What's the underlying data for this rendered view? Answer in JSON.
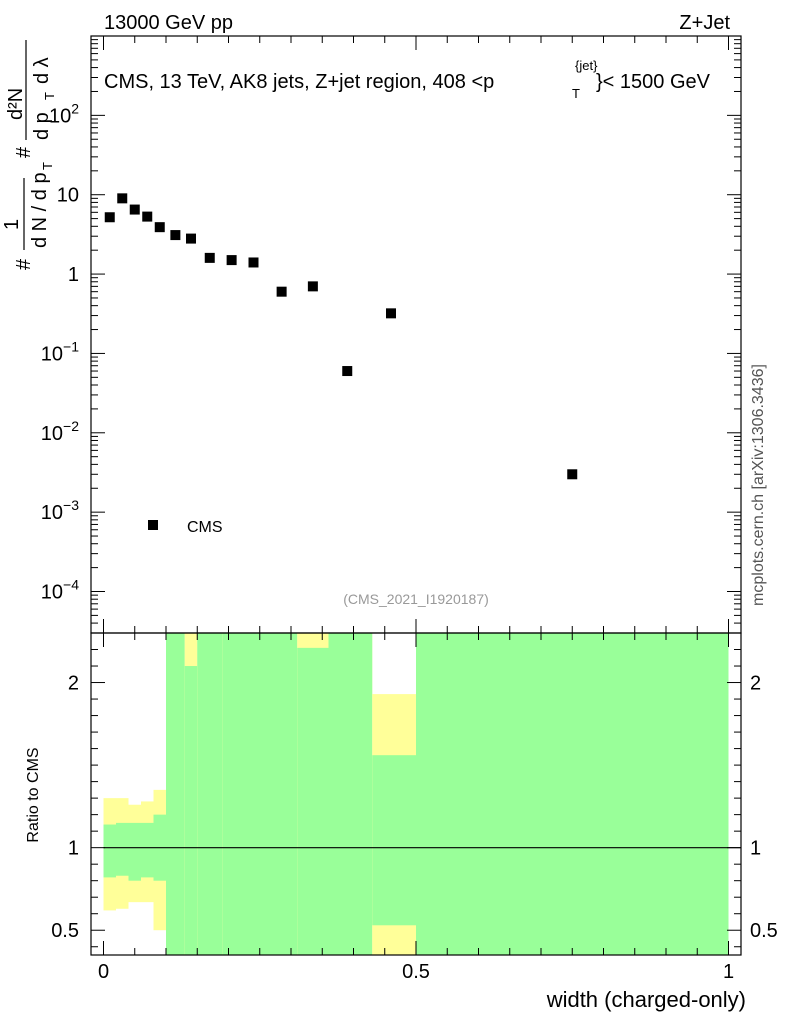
{
  "header": {
    "left": "13000 GeV pp",
    "right": "Z+Jet"
  },
  "plot_title": {
    "prefix": "CMS, 13 TeV, AK8 jets, Z+jet region, 408 <",
    "p": "p",
    "sub": "T",
    "sup": "{jet}",
    "suffix": "}< 1500 GeV"
  },
  "analysis_tag": "(CMS_2021_I1920187)",
  "side_label": "mcplots.cern.ch [arXiv:1306.3436]",
  "colors": {
    "marker": "#000000",
    "band_inner": "#99ff99",
    "band_outer": "#ffff99",
    "axis": "#000000",
    "tag": "#999999"
  },
  "chart_data": [
    {
      "type": "scatter",
      "panel": "main",
      "ylabel_parts": {
        "hash": "#",
        "one": "1",
        "dN": "d N / d p",
        "T": "T",
        "d2N": "d²N",
        "dp": "d p",
        "dl": "d λ"
      },
      "yscale": "log",
      "ylim": [
        3e-05,
        1000
      ],
      "xlim": [
        -0.02,
        1.02
      ],
      "y_ticks": [
        {
          "value": 100,
          "base": "10",
          "exp": "2"
        },
        {
          "value": 10,
          "base": "10",
          "exp": ""
        },
        {
          "value": 1,
          "base": "1",
          "exp": ""
        },
        {
          "value": 0.1,
          "base": "10",
          "exp": "−1"
        },
        {
          "value": 0.01,
          "base": "10",
          "exp": "−2"
        },
        {
          "value": 0.001,
          "base": "10",
          "exp": "−3"
        },
        {
          "value": 0.0001,
          "base": "10",
          "exp": "−4"
        }
      ],
      "series": [
        {
          "name": "CMS",
          "x": [
            0.01,
            0.03,
            0.05,
            0.07,
            0.09,
            0.115,
            0.14,
            0.17,
            0.205,
            0.24,
            0.285,
            0.335,
            0.39,
            0.46,
            0.75
          ],
          "y": [
            5.2,
            9.0,
            6.5,
            5.3,
            3.9,
            3.1,
            2.8,
            1.6,
            1.5,
            1.4,
            0.6,
            0.7,
            0.06,
            0.32,
            0.003
          ]
        }
      ],
      "legend": {
        "label": "CMS",
        "placement": "bottom-left"
      }
    },
    {
      "type": "area",
      "panel": "ratio",
      "ylabel": "Ratio to CMS",
      "xlabel": "width (charged-only)",
      "xlim": [
        -0.02,
        1.02
      ],
      "ylim": [
        0.35,
        2.3
      ],
      "x_ticks": [
        {
          "value": 0,
          "label": "0"
        },
        {
          "value": 0.5,
          "label": "0.5"
        },
        {
          "value": 1,
          "label": "1"
        }
      ],
      "y_ticks": [
        {
          "value": 0.5,
          "label": "0.5"
        },
        {
          "value": 1,
          "label": "1"
        },
        {
          "value": 2,
          "label": "2"
        }
      ],
      "reference_line": 1,
      "bins": [
        {
          "lo": 0.0,
          "hi": 0.02,
          "inner": [
            0.82,
            1.14
          ],
          "outer": [
            0.62,
            1.3
          ]
        },
        {
          "lo": 0.02,
          "hi": 0.04,
          "inner": [
            0.83,
            1.15
          ],
          "outer": [
            0.63,
            1.3
          ]
        },
        {
          "lo": 0.04,
          "hi": 0.06,
          "inner": [
            0.8,
            1.15
          ],
          "outer": [
            0.67,
            1.26
          ]
        },
        {
          "lo": 0.06,
          "hi": 0.08,
          "inner": [
            0.82,
            1.15
          ],
          "outer": [
            0.67,
            1.28
          ]
        },
        {
          "lo": 0.08,
          "hi": 0.1,
          "inner": [
            0.8,
            1.2
          ],
          "outer": [
            0.5,
            1.35
          ]
        },
        {
          "lo": 0.1,
          "hi": 0.13,
          "inner": [
            0.35,
            2.3
          ],
          "outer": [
            0.35,
            2.3
          ]
        },
        {
          "lo": 0.13,
          "hi": 0.15,
          "inner": [
            0.35,
            2.1
          ],
          "outer": [
            0.35,
            2.3
          ]
        },
        {
          "lo": 0.15,
          "hi": 0.19,
          "inner": [
            0.35,
            2.3
          ],
          "outer": [
            0.35,
            2.3
          ]
        },
        {
          "lo": 0.19,
          "hi": 0.22,
          "inner": [
            0.35,
            2.3
          ],
          "outer": [
            0.35,
            2.3
          ]
        },
        {
          "lo": 0.22,
          "hi": 0.26,
          "inner": [
            0.35,
            2.3
          ],
          "outer": [
            0.35,
            2.3
          ]
        },
        {
          "lo": 0.26,
          "hi": 0.31,
          "inner": [
            0.35,
            2.3
          ],
          "outer": [
            0.35,
            2.3
          ]
        },
        {
          "lo": 0.31,
          "hi": 0.36,
          "inner": [
            0.35,
            2.21
          ],
          "outer": [
            0.35,
            2.3
          ]
        },
        {
          "lo": 0.36,
          "hi": 0.43,
          "inner": [
            0.35,
            2.3
          ],
          "outer": [
            0.35,
            2.3
          ]
        },
        {
          "lo": 0.43,
          "hi": 0.5,
          "inner": [
            0.53,
            1.56
          ],
          "outer": [
            0.35,
            1.93
          ]
        },
        {
          "lo": 0.5,
          "hi": 1.0,
          "inner": [
            0.35,
            2.3
          ],
          "outer": [
            0.35,
            2.3
          ]
        }
      ]
    }
  ]
}
